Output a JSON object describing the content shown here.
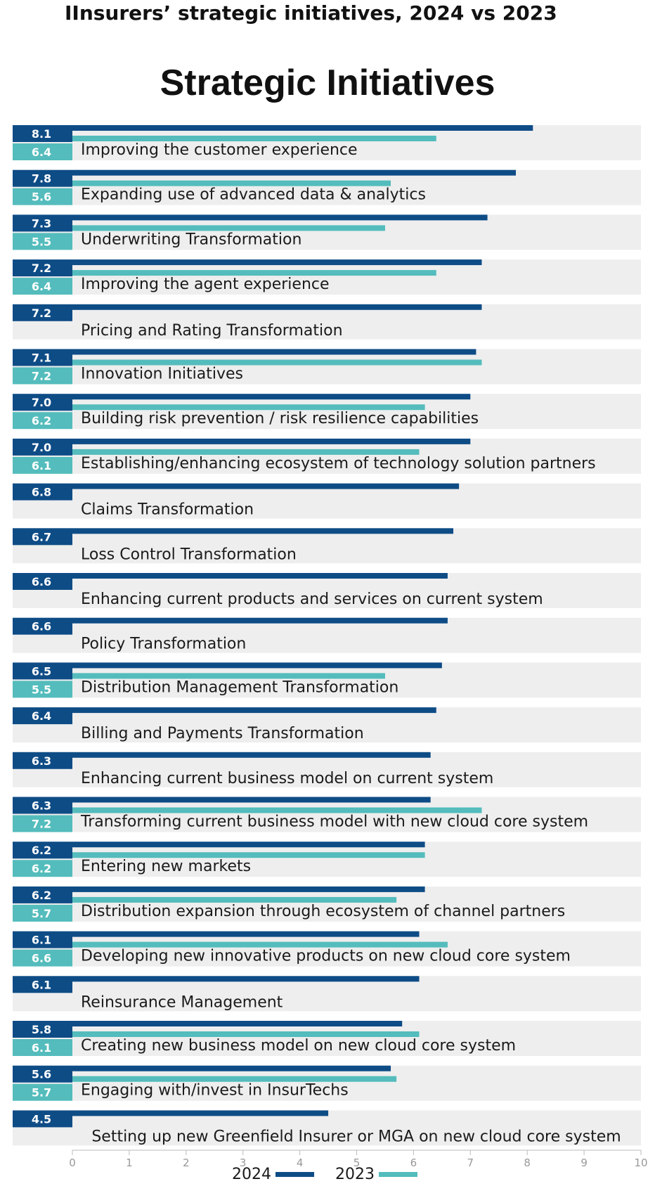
{
  "header": {
    "title": "IInsurers’ strategic initiatives, 2024 vs 2023"
  },
  "colors": {
    "y2024": "#0e4c86",
    "y2023": "#54bcbc",
    "row_bg": "#eeeeee",
    "axis": "#bbbbbb"
  },
  "chart_data": {
    "type": "bar",
    "orientation": "horizontal",
    "title": "Strategic Initiatives",
    "categories": [
      "Improving the customer experience",
      "Expanding use of advanced data & analytics",
      "Underwriting Transformation",
      "Improving the agent experience",
      "Pricing and Rating Transformation",
      "Innovation Initiatives",
      "Building risk prevention / risk resilience capabilities",
      "Establishing/enhancing ecosystem of technology solution partners",
      "Claims Transformation",
      "Loss Control Transformation",
      "Enhancing current products and services on current system",
      "Policy Transformation",
      "Distribution Management Transformation",
      "Billing and Payments Transformation",
      "Enhancing current business model on current system",
      "Transforming current business model with new cloud core system",
      "Entering new markets",
      "Distribution expansion through ecosystem of channel partners",
      "Developing new innovative products on new cloud core  system",
      "Reinsurance Management",
      "Creating new business model on new cloud core system",
      "Engaging with/invest in InsurTechs",
      "Setting up new Greenfield Insurer or MGA on new cloud core system"
    ],
    "series": [
      {
        "name": "2024",
        "values": [
          8.1,
          7.8,
          7.3,
          7.2,
          7.2,
          7.1,
          7.0,
          7.0,
          6.8,
          6.7,
          6.6,
          6.6,
          6.5,
          6.4,
          6.3,
          6.3,
          6.2,
          6.2,
          6.1,
          6.1,
          5.8,
          5.6,
          4.5
        ]
      },
      {
        "name": "2023",
        "values": [
          6.4,
          5.6,
          5.5,
          6.4,
          null,
          7.2,
          6.2,
          6.1,
          null,
          null,
          null,
          null,
          5.5,
          null,
          null,
          7.2,
          6.2,
          5.7,
          6.6,
          null,
          6.1,
          5.7,
          null
        ]
      }
    ],
    "value_labels_2024": [
      "8.1",
      "7.8",
      "7.3",
      "7.2",
      "7.2",
      "7.1",
      "7.0",
      "7.0",
      "6.8",
      "6.7",
      "6.6",
      "6.6",
      "6.5",
      "6.4",
      "6.3",
      "6.3",
      "6.2",
      "6.2",
      "6.1",
      "6.1",
      "5.8",
      "5.6",
      "4.5"
    ],
    "value_labels_2023": [
      "6.4",
      "5.6",
      "5.5",
      "6.4",
      null,
      "7.2",
      "6.2",
      "6.1",
      null,
      null,
      null,
      null,
      "5.5",
      null,
      null,
      "7.2",
      "6.2",
      "5.7",
      "6.6",
      null,
      "6.1",
      "5.7",
      null
    ],
    "xlim": [
      0,
      10
    ],
    "x_ticks": [
      "0",
      "1",
      "2",
      "3",
      "4",
      "5",
      "6",
      "7",
      "8",
      "9",
      "10"
    ],
    "legend": {
      "position": "bottom",
      "entries": [
        "2024",
        "2023"
      ]
    },
    "grid": false
  }
}
